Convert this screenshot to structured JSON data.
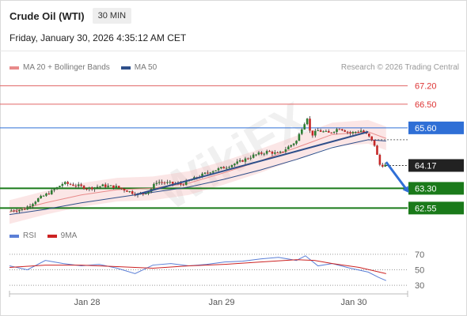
{
  "header": {
    "instrument": "Crude Oil (WTI)",
    "timeframe": "30 MIN",
    "datetime": "Friday, January 30, 2026 4:35:12 AM CET",
    "source": "Research © 2026 Trading Central"
  },
  "legend": {
    "ma20_label": "MA 20 + Bollinger Bands",
    "ma20_color": "#e88a8a",
    "ma50_label": "MA 50",
    "ma50_color": "#2f4f8a"
  },
  "rsi_legend": {
    "rsi_label": "RSI",
    "rsi_color": "#5b7fd6",
    "ma_label": "9MA",
    "ma_color": "#cc2222"
  },
  "watermark": "WikiFX",
  "chart_data": {
    "type": "candlestick",
    "price_range": [
      62.05,
      67.55
    ],
    "levels": [
      {
        "value": 67.2,
        "label": "67.20",
        "role": "resistance",
        "color": "#e06666"
      },
      {
        "value": 66.5,
        "label": "66.50",
        "role": "resistance",
        "color": "#e06666"
      },
      {
        "value": 65.6,
        "label": "65.60",
        "role": "pivot",
        "color": "#2f6fd6"
      },
      {
        "value": 63.3,
        "label": "63.30",
        "role": "support",
        "color": "#1a7a1a"
      },
      {
        "value": 62.55,
        "label": "62.55",
        "role": "support",
        "color": "#1a7a1a"
      }
    ],
    "last_price": {
      "value": 64.17,
      "label": "64.17"
    },
    "x_ticks": [
      "Jan 28",
      "Jan 29",
      "Jan 30"
    ],
    "price_path": [
      [
        0,
        62.45
      ],
      [
        8,
        62.5
      ],
      [
        16,
        62.9
      ],
      [
        24,
        63.2
      ],
      [
        30,
        63.5
      ],
      [
        38,
        63.4
      ],
      [
        44,
        63.3
      ],
      [
        52,
        63.4
      ],
      [
        60,
        63.35
      ],
      [
        66,
        63.2
      ],
      [
        72,
        63.05
      ],
      [
        78,
        63.2
      ],
      [
        82,
        63.55
      ],
      [
        88,
        63.5
      ],
      [
        96,
        63.45
      ],
      [
        104,
        63.7
      ],
      [
        112,
        63.95
      ],
      [
        120,
        64.1
      ],
      [
        128,
        64.3
      ],
      [
        136,
        64.55
      ],
      [
        144,
        64.7
      ],
      [
        150,
        64.6
      ],
      [
        156,
        64.9
      ],
      [
        160,
        65.1
      ],
      [
        163,
        65.6
      ],
      [
        166,
        66.0
      ],
      [
        168,
        65.3
      ],
      [
        172,
        65.5
      ],
      [
        178,
        65.4
      ],
      [
        184,
        65.6
      ],
      [
        190,
        65.4
      ],
      [
        196,
        65.5
      ],
      [
        200,
        65.3
      ],
      [
        204,
        64.9
      ],
      [
        206,
        64.2
      ],
      [
        210,
        64.17
      ]
    ],
    "ma20": [
      [
        0,
        62.4
      ],
      [
        20,
        62.75
      ],
      [
        40,
        63.05
      ],
      [
        60,
        63.25
      ],
      [
        80,
        63.3
      ],
      [
        100,
        63.5
      ],
      [
        120,
        63.9
      ],
      [
        140,
        64.35
      ],
      [
        160,
        64.85
      ],
      [
        180,
        65.35
      ],
      [
        200,
        65.45
      ],
      [
        210,
        65.2
      ]
    ],
    "ma50": [
      [
        0,
        62.3
      ],
      [
        20,
        62.5
      ],
      [
        40,
        62.75
      ],
      [
        60,
        62.95
      ],
      [
        80,
        63.15
      ],
      [
        100,
        63.35
      ],
      [
        120,
        63.65
      ],
      [
        140,
        64.0
      ],
      [
        160,
        64.4
      ],
      [
        180,
        64.85
      ],
      [
        200,
        65.15
      ],
      [
        210,
        65.1
      ]
    ],
    "trendline": [
      [
        70,
        63.05
      ],
      [
        200,
        65.45
      ]
    ],
    "forecast_arrow": [
      [
        210,
        64.3
      ],
      [
        222,
        63.2
      ]
    ],
    "rsi": {
      "levels": [
        70,
        50,
        30
      ],
      "range": [
        25,
        80
      ],
      "rsi": [
        [
          0,
          55
        ],
        [
          10,
          50
        ],
        [
          20,
          62
        ],
        [
          30,
          58
        ],
        [
          40,
          55
        ],
        [
          50,
          57
        ],
        [
          60,
          52
        ],
        [
          70,
          45
        ],
        [
          80,
          56
        ],
        [
          90,
          58
        ],
        [
          100,
          55
        ],
        [
          110,
          57
        ],
        [
          120,
          60
        ],
        [
          130,
          61
        ],
        [
          140,
          64
        ],
        [
          150,
          66
        ],
        [
          160,
          62
        ],
        [
          165,
          68
        ],
        [
          172,
          55
        ],
        [
          180,
          58
        ],
        [
          190,
          52
        ],
        [
          200,
          47
        ],
        [
          206,
          40
        ],
        [
          210,
          36
        ]
      ],
      "ma9": [
        [
          0,
          53
        ],
        [
          20,
          56
        ],
        [
          40,
          56
        ],
        [
          60,
          54
        ],
        [
          80,
          52
        ],
        [
          100,
          55
        ],
        [
          120,
          57
        ],
        [
          140,
          60
        ],
        [
          160,
          63
        ],
        [
          170,
          62
        ],
        [
          180,
          58
        ],
        [
          195,
          53
        ],
        [
          210,
          45
        ]
      ]
    }
  }
}
